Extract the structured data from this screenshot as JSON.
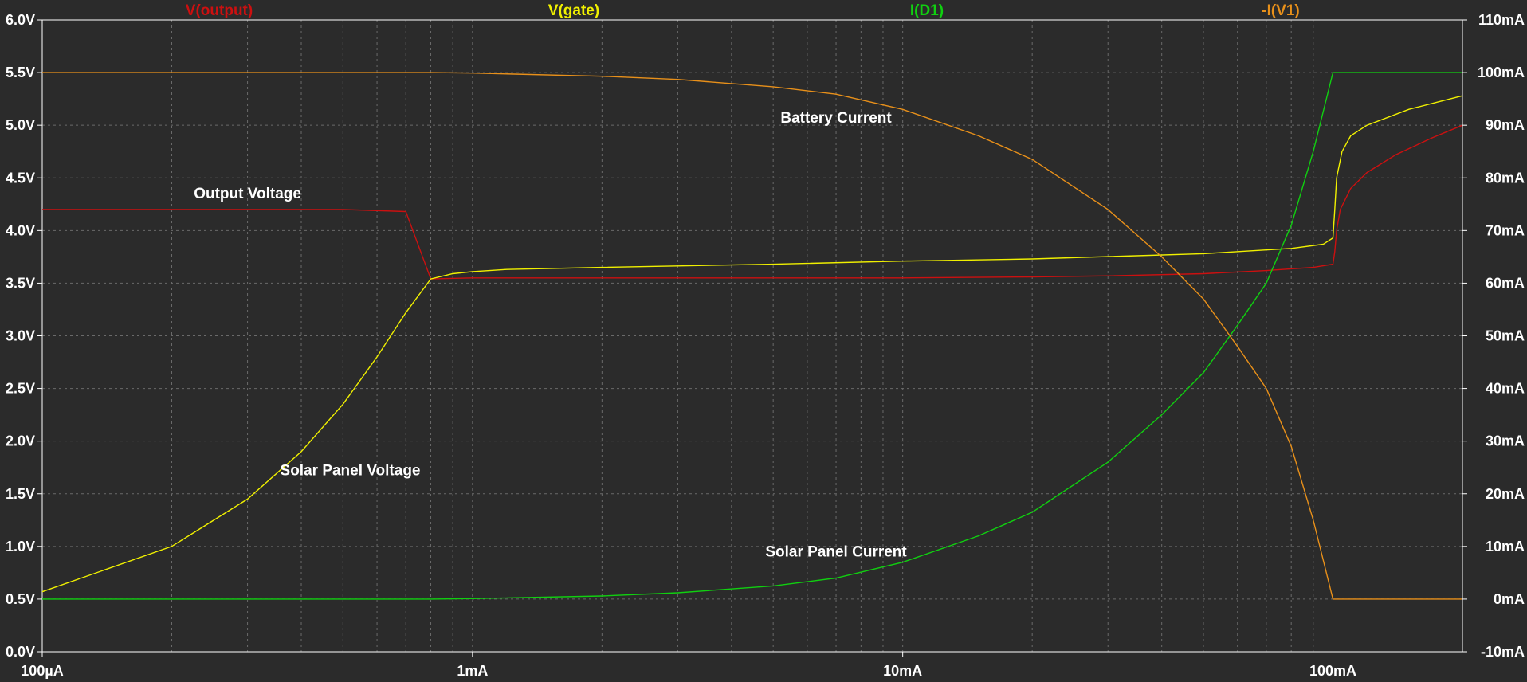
{
  "chart_data": {
    "type": "line",
    "x_scale": "log",
    "x_unit": "A",
    "xlim": [
      0.0001,
      0.2
    ],
    "x_ticks": [
      {
        "value": 0.0001,
        "label": "100µA"
      },
      {
        "value": 0.001,
        "label": "1mA"
      },
      {
        "value": 0.01,
        "label": "10mA"
      },
      {
        "value": 0.1,
        "label": "100mA"
      }
    ],
    "y_left": {
      "unit": "V",
      "ylim": [
        0.0,
        6.0
      ],
      "ticks": [
        "0.0V",
        "0.5V",
        "1.0V",
        "1.5V",
        "2.0V",
        "2.5V",
        "3.0V",
        "3.5V",
        "4.0V",
        "4.5V",
        "5.0V",
        "5.5V",
        "6.0V"
      ]
    },
    "y_right": {
      "unit": "mA",
      "ylim": [
        -10,
        110
      ],
      "ticks": [
        "-10mA",
        "0mA",
        "10mA",
        "20mA",
        "30mA",
        "40mA",
        "50mA",
        "60mA",
        "70mA",
        "80mA",
        "90mA",
        "100mA",
        "110mA"
      ]
    },
    "grid": true,
    "series": [
      {
        "name": "V(output)",
        "color": "#cc1010",
        "axis": "left",
        "points": [
          [
            0.0001,
            4.2
          ],
          [
            0.0002,
            4.2
          ],
          [
            0.0005,
            4.2
          ],
          [
            0.0007,
            4.18
          ],
          [
            0.0008,
            3.54
          ],
          [
            0.001,
            3.55
          ],
          [
            0.002,
            3.55
          ],
          [
            0.005,
            3.55
          ],
          [
            0.01,
            3.55
          ],
          [
            0.02,
            3.56
          ],
          [
            0.03,
            3.57
          ],
          [
            0.05,
            3.59
          ],
          [
            0.07,
            3.62
          ],
          [
            0.09,
            3.65
          ],
          [
            0.1,
            3.68
          ],
          [
            0.101,
            3.8
          ],
          [
            0.102,
            4.0
          ],
          [
            0.104,
            4.2
          ],
          [
            0.11,
            4.4
          ],
          [
            0.12,
            4.55
          ],
          [
            0.14,
            4.72
          ],
          [
            0.17,
            4.88
          ],
          [
            0.2,
            5.0
          ]
        ]
      },
      {
        "name": "V(gate)",
        "color": "#f0f000",
        "axis": "left",
        "points": [
          [
            0.0001,
            0.57
          ],
          [
            0.0002,
            1.0
          ],
          [
            0.0003,
            1.45
          ],
          [
            0.0004,
            1.9
          ],
          [
            0.0005,
            2.35
          ],
          [
            0.0006,
            2.8
          ],
          [
            0.0007,
            3.22
          ],
          [
            0.0008,
            3.54
          ],
          [
            0.0009,
            3.59
          ],
          [
            0.001,
            3.61
          ],
          [
            0.0012,
            3.63
          ],
          [
            0.002,
            3.65
          ],
          [
            0.005,
            3.68
          ],
          [
            0.01,
            3.71
          ],
          [
            0.02,
            3.73
          ],
          [
            0.05,
            3.78
          ],
          [
            0.08,
            3.83
          ],
          [
            0.095,
            3.87
          ],
          [
            0.1,
            3.93
          ],
          [
            0.101,
            4.2
          ],
          [
            0.102,
            4.5
          ],
          [
            0.105,
            4.75
          ],
          [
            0.11,
            4.9
          ],
          [
            0.12,
            5.0
          ],
          [
            0.15,
            5.15
          ],
          [
            0.2,
            5.28
          ]
        ]
      },
      {
        "name": "I(D1)",
        "color": "#10d010",
        "axis": "right",
        "points": [
          [
            0.0001,
            0
          ],
          [
            0.0005,
            0
          ],
          [
            0.0008,
            0
          ],
          [
            0.001,
            0.1
          ],
          [
            0.002,
            0.6
          ],
          [
            0.003,
            1.2
          ],
          [
            0.005,
            2.5
          ],
          [
            0.007,
            4.0
          ],
          [
            0.01,
            7.0
          ],
          [
            0.015,
            12.0
          ],
          [
            0.02,
            16.5
          ],
          [
            0.03,
            26.0
          ],
          [
            0.04,
            35.0
          ],
          [
            0.05,
            43.0
          ],
          [
            0.06,
            52.0
          ],
          [
            0.07,
            60.0
          ],
          [
            0.08,
            71.0
          ],
          [
            0.09,
            85.0
          ],
          [
            0.1,
            100.0
          ],
          [
            0.2,
            100.0
          ]
        ]
      },
      {
        "name": "-I(V1)",
        "color": "#e8901a",
        "axis": "right",
        "points": [
          [
            0.0001,
            100
          ],
          [
            0.0008,
            100
          ],
          [
            0.001,
            99.9
          ],
          [
            0.002,
            99.3
          ],
          [
            0.003,
            98.7
          ],
          [
            0.005,
            97.3
          ],
          [
            0.007,
            95.9
          ],
          [
            0.01,
            93.0
          ],
          [
            0.015,
            88.0
          ],
          [
            0.02,
            83.5
          ],
          [
            0.03,
            74.0
          ],
          [
            0.04,
            65.0
          ],
          [
            0.05,
            57.0
          ],
          [
            0.06,
            48.0
          ],
          [
            0.07,
            40.0
          ],
          [
            0.08,
            29.0
          ],
          [
            0.09,
            15.0
          ],
          [
            0.1,
            0
          ],
          [
            0.2,
            0
          ]
        ]
      }
    ],
    "annotations": [
      {
        "text": "Battery Current",
        "x": 0.007,
        "y_left": 5.07
      },
      {
        "text": "Output Voltage",
        "x": 0.0003,
        "y_left": 4.35
      },
      {
        "text": "Solar Panel Voltage",
        "x": 0.00052,
        "y_left": 1.72
      },
      {
        "text": "Solar Panel Current",
        "x": 0.007,
        "y_left": 0.95
      }
    ]
  }
}
